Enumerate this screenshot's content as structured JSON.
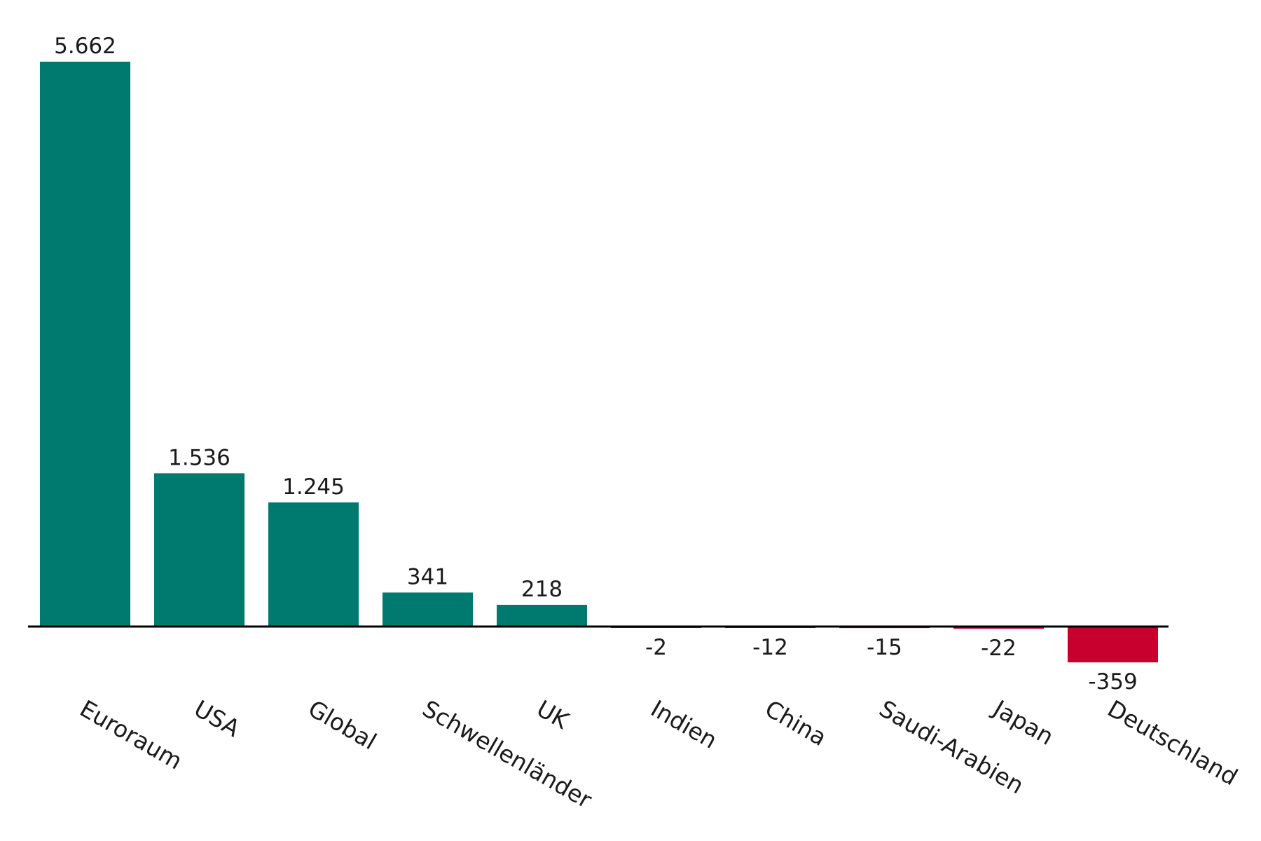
{
  "chart_data": {
    "type": "bar",
    "title": "",
    "xlabel": "",
    "ylabel": "",
    "categories": [
      "Euroraum",
      "USA",
      "Global",
      "Schwellenländer",
      "UK",
      "Indien",
      "China",
      "Saudi-Arabien",
      "Japan",
      "Deutschland"
    ],
    "values": [
      5662,
      1536,
      1245,
      341,
      218,
      -2,
      -12,
      -15,
      -22,
      -359
    ],
    "value_labels": [
      "5.662",
      "1.536",
      "1.245",
      "341",
      "218",
      "-2",
      "-12",
      "-15",
      "-22",
      "-359"
    ],
    "ylim": [
      -359,
      5662
    ],
    "grid": false,
    "legend": "none",
    "colors": {
      "positive": "#00796f",
      "negative": "#c8002d",
      "axis": "#000000"
    }
  }
}
